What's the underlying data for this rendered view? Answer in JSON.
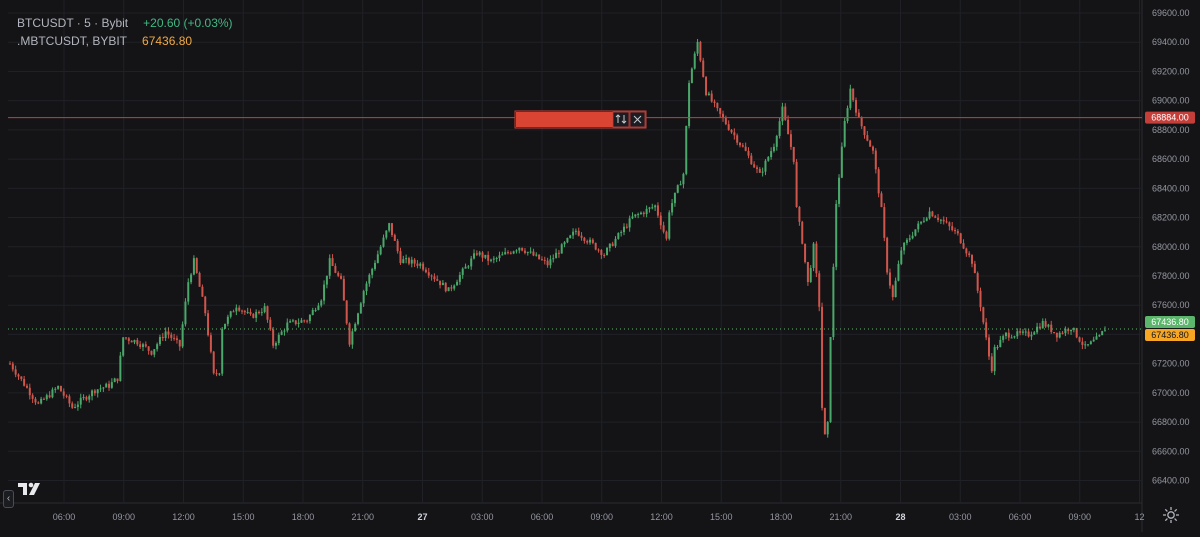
{
  "legend": {
    "symbol": "BTCUSDT · 5 · Bybit",
    "change": "+20.60 (+0.03%)",
    "index_symbol": ".MBTCUSDT, BYBIT",
    "index_value": "67436.80"
  },
  "alert_line": {
    "price": 68884,
    "label": "68884.00",
    "color": "#c53f3a",
    "swap_icon": "swap-vertical-icon",
    "close_icon": "close-icon"
  },
  "price_labels": {
    "last": "67436.80",
    "index": "67436.80",
    "last_color": "#5bb56a",
    "index_color": "#f6a623"
  },
  "colors": {
    "background": "#141417",
    "up": "#4aa86a",
    "down": "#d0564c",
    "axis_text": "#9598a1"
  },
  "chart_data": {
    "type": "candlestick",
    "y_ticks": [
      "69600.00",
      "69400.00",
      "69200.00",
      "69000.00",
      "68800.00",
      "68600.00",
      "68400.00",
      "68200.00",
      "68000.00",
      "67800.00",
      "67600.00",
      "67400.00",
      "67200.00",
      "67000.00",
      "66800.00",
      "66600.00",
      "66400.00"
    ],
    "x_ticks": [
      "06:00",
      "09:00",
      "12:00",
      "15:00",
      "18:00",
      "21:00",
      "27",
      "03:00",
      "06:00",
      "09:00",
      "12:00",
      "15:00",
      "18:00",
      "21:00",
      "28",
      "03:00",
      "06:00",
      "09:00",
      "12"
    ],
    "ylim": [
      66300,
      69700
    ],
    "price_path": [
      [
        0,
        67200
      ],
      [
        10,
        66920
      ],
      [
        17,
        67040
      ],
      [
        22,
        66900
      ],
      [
        30,
        67020
      ],
      [
        35,
        67050
      ],
      [
        38,
        67100
      ],
      [
        40,
        67380
      ],
      [
        45,
        67350
      ],
      [
        50,
        67280
      ],
      [
        55,
        67420
      ],
      [
        60,
        67320
      ],
      [
        63,
        67760
      ],
      [
        65,
        67900
      ],
      [
        69,
        67550
      ],
      [
        72,
        67120
      ],
      [
        74,
        67150
      ],
      [
        75,
        67450
      ],
      [
        80,
        67600
      ],
      [
        85,
        67520
      ],
      [
        90,
        67580
      ],
      [
        93,
        67330
      ],
      [
        98,
        67470
      ],
      [
        105,
        67500
      ],
      [
        110,
        67650
      ],
      [
        113,
        67900
      ],
      [
        117,
        67760
      ],
      [
        120,
        67350
      ],
      [
        125,
        67700
      ],
      [
        130,
        67950
      ],
      [
        134,
        68150
      ],
      [
        138,
        67910
      ],
      [
        145,
        67880
      ],
      [
        155,
        67700
      ],
      [
        165,
        67960
      ],
      [
        170,
        67900
      ],
      [
        180,
        68000
      ],
      [
        190,
        67880
      ],
      [
        200,
        68110
      ],
      [
        210,
        67950
      ],
      [
        220,
        68200
      ],
      [
        228,
        68280
      ],
      [
        232,
        68050
      ],
      [
        233,
        68250
      ],
      [
        238,
        68500
      ],
      [
        240,
        69130
      ],
      [
        243,
        69400
      ],
      [
        246,
        69060
      ],
      [
        250,
        68930
      ],
      [
        260,
        68650
      ],
      [
        265,
        68490
      ],
      [
        270,
        68700
      ],
      [
        273,
        68940
      ],
      [
        277,
        68600
      ],
      [
        278,
        68260
      ],
      [
        280,
        68040
      ],
      [
        282,
        67750
      ],
      [
        284,
        68000
      ],
      [
        286,
        67600
      ],
      [
        287,
        66900
      ],
      [
        288,
        66700
      ],
      [
        289,
        66780
      ],
      [
        290,
        67400
      ],
      [
        292,
        68300
      ],
      [
        295,
        68850
      ],
      [
        297,
        69080
      ],
      [
        300,
        68870
      ],
      [
        305,
        68650
      ],
      [
        308,
        68250
      ],
      [
        310,
        67840
      ],
      [
        312,
        67650
      ],
      [
        315,
        67980
      ],
      [
        320,
        68120
      ],
      [
        325,
        68240
      ],
      [
        330,
        68170
      ],
      [
        335,
        68080
      ],
      [
        340,
        67900
      ],
      [
        343,
        67600
      ],
      [
        346,
        67250
      ],
      [
        347,
        67170
      ],
      [
        348,
        67300
      ],
      [
        352,
        67400
      ],
      [
        360,
        67400
      ],
      [
        365,
        67480
      ],
      [
        370,
        67400
      ],
      [
        375,
        67450
      ],
      [
        380,
        67310
      ],
      [
        385,
        67380
      ],
      [
        387,
        67440
      ]
    ]
  }
}
